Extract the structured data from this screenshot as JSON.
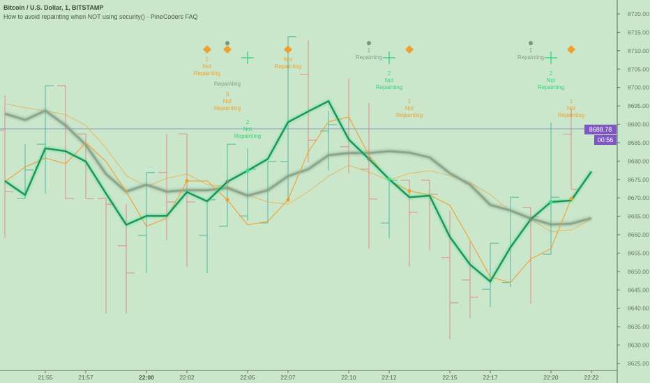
{
  "header": {
    "symbol_title": "Bitcoin / U.S. Dollar, 1, BITSTAMP",
    "indicator_title": "How to avoid repainting when NOT using security() - PineCoders FAQ"
  },
  "price_tag": {
    "last_price": "8688.78",
    "countdown": "00:56"
  },
  "colors": {
    "background": "#cbe7cb",
    "up_bar": "#4db6a0",
    "down_bar": "#e08a80",
    "close_line": "#1f8f5c",
    "ma_gray": "#7f9c84",
    "orange": "#f0a030",
    "tag": "#7e57c2",
    "last_price_line": "#7a86c8"
  },
  "chart_data": {
    "type": "ohlc",
    "y_range": [
      8625,
      8720
    ],
    "y_ticks": [
      "8625.00",
      "8630.00",
      "8635.00",
      "8640.00",
      "8645.00",
      "8650.00",
      "8655.00",
      "8660.00",
      "8665.00",
      "8670.00",
      "8675.00",
      "8680.00",
      "8685.00",
      "8690.00",
      "8695.00",
      "8700.00",
      "8705.00",
      "8710.00",
      "8715.00",
      "8720.00"
    ],
    "x_ticks": [
      {
        "bar": 2,
        "label": "21:55",
        "bold": false
      },
      {
        "bar": 4,
        "label": "21:57",
        "bold": false
      },
      {
        "bar": 7,
        "label": "22:00",
        "bold": true
      },
      {
        "bar": 9,
        "label": "22:02",
        "bold": false
      },
      {
        "bar": 12,
        "label": "22:05",
        "bold": false
      },
      {
        "bar": 14,
        "label": "22:07",
        "bold": false
      },
      {
        "bar": 17,
        "label": "22:10",
        "bold": false
      },
      {
        "bar": 19,
        "label": "22:12",
        "bold": false
      },
      {
        "bar": 22,
        "label": "22:15",
        "bold": false
      },
      {
        "bar": 24,
        "label": "22:17",
        "bold": false
      },
      {
        "bar": 27,
        "label": "22:20",
        "bold": false
      },
      {
        "bar": 29,
        "label": "22:22",
        "bold": false
      }
    ],
    "bars": [
      [
        8688.4,
        8697.9,
        8659.1,
        8671.7
      ],
      [
        8669.8,
        8684.6,
        8669.8,
        8677.6
      ],
      [
        8684.6,
        8700.5,
        8671.2,
        8700.5
      ],
      [
        8700.5,
        8700.5,
        8669.8,
        8669.8
      ],
      [
        8687.4,
        8687.4,
        8669.8,
        8669.8
      ],
      [
        8669.8,
        8669.8,
        8638.6,
        8668.3
      ],
      [
        8657.0,
        8668.3,
        8638.6,
        8649.6
      ],
      [
        8659.8,
        8676.9,
        8649.6,
        8676.9
      ],
      [
        8676.9,
        8687.4,
        8658.5,
        8668.9
      ],
      [
        8687.4,
        8687.4,
        8651.3,
        8668.9
      ],
      [
        8659.8,
        8669.5,
        8649.6,
        8669.5
      ],
      [
        8662.3,
        8684.6,
        8662.3,
        8684.6
      ],
      [
        8665.1,
        8683.5,
        8663.8,
        8677.8
      ],
      [
        8663.2,
        8679.9,
        8663.2,
        8679.9
      ],
      [
        8679.9,
        8713.8,
        8668.9,
        8713.8
      ],
      [
        8703.5,
        8712.8,
        8679.7,
        8685.7
      ],
      [
        8688.2,
        8693.7,
        8677.4,
        8689.9
      ],
      [
        8683.9,
        8702.4,
        8676.7,
        8682.2
      ],
      [
        8677.8,
        8695.8,
        8656.2,
        8669.7
      ],
      [
        8663.2,
        8674.8,
        8659.1,
        8674.8
      ],
      [
        8674.8,
        8674.8,
        8651.3,
        8666.1
      ],
      [
        8674.8,
        8674.8,
        8655.7,
        8671.0
      ],
      [
        8653.8,
        8666.4,
        8631.6,
        8641.5
      ],
      [
        8647.7,
        8658.1,
        8637.3,
        8643.0
      ],
      [
        8645.2,
        8657.7,
        8640.3,
        8657.7
      ],
      [
        8647.0,
        8670.2,
        8645.8,
        8670.2
      ],
      [
        8667.4,
        8667.4,
        8641.3,
        8664.9
      ],
      [
        8654.7,
        8690.5,
        8654.7,
        8670.2
      ],
      [
        8687.3,
        8694.3,
        8672.3,
        8672.3
      ],
      [
        8688.78,
        8688.78,
        8688.78,
        8688.78
      ]
    ],
    "series": [
      {
        "name": "close",
        "values": [
          8674.6,
          8670.8,
          8683.5,
          8682.7,
          8679.9,
          8671.2,
          8662.7,
          8665.1,
          8665.1,
          8671.6,
          8669.1,
          8674.4,
          8677.4,
          8680.6,
          8690.6,
          8693.5,
          8696.3,
          8685.9,
          8680.6,
          8675.1,
          8670.2,
          8670.6,
          8659.4,
          8651.9,
          8647.3,
          8656.6,
          8664.2,
          8668.9,
          8669.3,
          8677.2
        ]
      },
      {
        "name": "ma-gray",
        "values": [
          8692.9,
          8691.2,
          8693.7,
          8689.7,
          8684.4,
          8676.5,
          8671.7,
          8673.6,
          8671.7,
          8672.1,
          8672.1,
          8672.7,
          8670.6,
          8672.1,
          8675.9,
          8677.8,
          8681.6,
          8682.2,
          8682.2,
          8682.7,
          8682.3,
          8681.0,
          8676.7,
          8673.6,
          8668.1,
          8666.6,
          8664.4,
          8662.8,
          8663.0,
          8664.5
        ]
      },
      {
        "name": "orange-medium",
        "values": [
          8674.4,
          8678.4,
          8680.8,
          8679.3,
          8685.0,
          8679.9,
          8671.7,
          8662.3,
          8664.5,
          8674.6,
          8674.6,
          8669.5,
          8662.7,
          8663.6,
          8669.5,
          8682.5,
          8690.7,
          8692.0,
          8681.6,
          8674.8,
          8671.9,
          8670.8,
          8668.0,
          8658.5,
          8648.5,
          8647.0,
          8653.4,
          8656.2,
          8669.8,
          8677.0
        ]
      },
      {
        "name": "orange-thin",
        "values": [
          8695.6,
          8694.5,
          8693.7,
          8692.6,
          8689.7,
          8683.5,
          8676.1,
          8673.1,
          8675.3,
          8676.5,
          8673.6,
          8673.1,
          8670.8,
          8668.9,
          8668.3,
          8671.7,
          8675.9,
          8678.9,
          8677.0,
          8674.8,
          8676.7,
          8677.4,
          8676.1,
          8674.2,
          8670.9,
          8666.4,
          8664.2,
          8660.8,
          8661.3,
          8664.2
        ]
      }
    ],
    "line_dots": [
      {
        "bar": 9,
        "series": "orange-medium",
        "kind": "orange"
      },
      {
        "bar": 11,
        "series": "orange-medium",
        "kind": "orange"
      },
      {
        "bar": 14,
        "series": "orange-medium",
        "kind": "orange"
      },
      {
        "bar": 20,
        "series": "orange-medium",
        "kind": "orange"
      },
      {
        "bar": 28,
        "series": "orange-medium",
        "kind": "orange"
      },
      {
        "bar": 12,
        "series": "close",
        "kind": "green"
      },
      {
        "bar": 19,
        "series": "close",
        "kind": "green"
      },
      {
        "bar": 27,
        "series": "close",
        "kind": "green"
      },
      {
        "bar": 11,
        "series": "close",
        "kind": "gray"
      },
      {
        "bar": 18,
        "series": "close",
        "kind": "gray"
      },
      {
        "bar": 26,
        "series": "close",
        "kind": "gray"
      }
    ],
    "signals": [
      {
        "bar": 10,
        "kind": "diamond",
        "lines": [
          "1",
          "Not",
          "Repainting"
        ]
      },
      {
        "bar": 11,
        "kind": "dot",
        "lines": [
          "Repainting"
        ]
      },
      {
        "bar": 11,
        "kind": "diamond",
        "lines": [
          "3",
          "Not",
          "Repainting"
        ]
      },
      {
        "bar": 12,
        "kind": "cross",
        "lines": [
          "2",
          "Not",
          "Repainting"
        ]
      },
      {
        "bar": 14,
        "kind": "diamond",
        "lines": [
          "Not",
          "Repainting"
        ]
      },
      {
        "bar": 18,
        "kind": "dot",
        "lines": [
          "1",
          "Repainting"
        ]
      },
      {
        "bar": 19,
        "kind": "cross",
        "lines": [
          "2",
          "Not",
          "Repainting"
        ]
      },
      {
        "bar": 20,
        "kind": "diamond",
        "lines": [
          "1",
          "Not",
          "Repainting"
        ]
      },
      {
        "bar": 26,
        "kind": "dot",
        "lines": [
          "1",
          "Repainting"
        ]
      },
      {
        "bar": 27,
        "kind": "cross",
        "lines": [
          "2",
          "Not",
          "Repainting"
        ]
      },
      {
        "bar": 28,
        "kind": "diamond",
        "lines": [
          "1",
          "Not",
          "Repainting"
        ]
      }
    ]
  }
}
